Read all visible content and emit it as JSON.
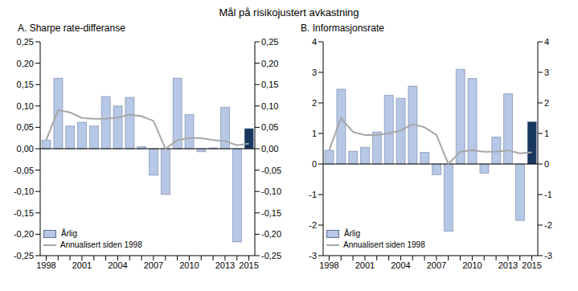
{
  "title": "Mål på risikojustert avkastning",
  "chart_data": [
    {
      "type": "bar",
      "title": "A. Sharpe rate-differanse",
      "categories": [
        "1998",
        null,
        null,
        "2001",
        null,
        null,
        "2004",
        null,
        null,
        "2007",
        null,
        null,
        "2010",
        null,
        null,
        "2013",
        null,
        "2015"
      ],
      "series": [
        {
          "name": "Årlig",
          "type": "bar",
          "colors": [
            "#b7c8e6",
            "#b7c8e6",
            "#b7c8e6",
            "#b7c8e6",
            "#b7c8e6",
            "#b7c8e6",
            "#b7c8e6",
            "#b7c8e6",
            "#b7c8e6",
            "#b7c8e6",
            "#b7c8e6",
            "#b7c8e6",
            "#b7c8e6",
            "#b7c8e6",
            "#b7c8e6",
            "#b7c8e6",
            "#b7c8e6",
            "#17375e"
          ],
          "values": [
            0.02,
            0.165,
            0.053,
            0.062,
            0.053,
            0.122,
            0.1,
            0.12,
            0.005,
            -0.062,
            -0.107,
            0.165,
            0.08,
            -0.007,
            0.002,
            0.097,
            -0.218,
            0.047
          ]
        },
        {
          "name": "Annualisert siden 1998",
          "type": "line",
          "color": "#a6a6a6",
          "values": [
            0.02,
            0.09,
            0.085,
            0.072,
            0.07,
            0.07,
            0.073,
            0.08,
            0.076,
            0.065,
            0.0,
            0.02,
            0.025,
            0.025,
            0.02,
            0.018,
            0.008,
            0.012
          ]
        }
      ],
      "ylim": [
        -0.25,
        0.25
      ],
      "yticks": [
        {
          "value": -0.25,
          "label": "-0,25"
        },
        {
          "value": -0.2,
          "label": "-0,20"
        },
        {
          "value": -0.15,
          "label": "-0,15"
        },
        {
          "value": -0.1,
          "label": "-0,10"
        },
        {
          "value": -0.05,
          "label": "-0,05"
        },
        {
          "value": 0,
          "label": "0,00"
        },
        {
          "value": 0.05,
          "label": "0,05"
        },
        {
          "value": 0.1,
          "label": "0,10"
        },
        {
          "value": 0.15,
          "label": "0,15"
        },
        {
          "value": 0.2,
          "label": "0,20"
        },
        {
          "value": 0.25,
          "label": "0,25"
        }
      ],
      "legend": "lower left"
    },
    {
      "type": "bar",
      "title": "B. Informasjonsrate",
      "categories": [
        "1998",
        null,
        null,
        "2001",
        null,
        null,
        "2004",
        null,
        null,
        "2007",
        null,
        null,
        "2010",
        null,
        null,
        "2013",
        null,
        "2015"
      ],
      "series": [
        {
          "name": "Årlig",
          "type": "bar",
          "colors": [
            "#b7c8e6",
            "#b7c8e6",
            "#b7c8e6",
            "#b7c8e6",
            "#b7c8e6",
            "#b7c8e6",
            "#b7c8e6",
            "#b7c8e6",
            "#b7c8e6",
            "#b7c8e6",
            "#b7c8e6",
            "#b7c8e6",
            "#b7c8e6",
            "#b7c8e6",
            "#b7c8e6",
            "#b7c8e6",
            "#b7c8e6",
            "#17375e"
          ],
          "values": [
            0.45,
            2.45,
            0.42,
            0.55,
            1.05,
            2.25,
            2.15,
            2.55,
            0.38,
            -0.35,
            -2.2,
            3.1,
            2.8,
            -0.3,
            0.88,
            2.3,
            -1.85,
            1.38
          ]
        },
        {
          "name": "Annualisert siden 1998",
          "type": "line",
          "color": "#a6a6a6",
          "values": [
            0.45,
            1.5,
            1.05,
            0.95,
            0.95,
            1.0,
            1.1,
            1.3,
            1.2,
            0.95,
            0.0,
            0.4,
            0.45,
            0.4,
            0.4,
            0.45,
            0.35,
            0.38
          ]
        }
      ],
      "ylim": [
        -3,
        4
      ],
      "yticks": [
        -3,
        -2,
        -1,
        0,
        1,
        2,
        3,
        4
      ],
      "legend": "lower left"
    }
  ]
}
